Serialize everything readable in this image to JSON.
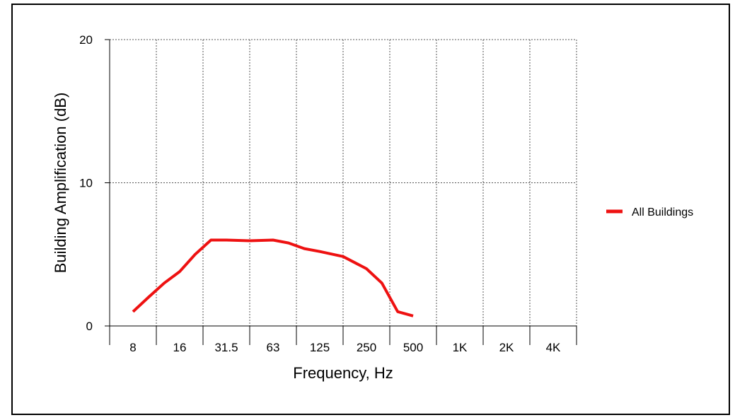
{
  "chart_data": {
    "type": "line",
    "title": "",
    "xlabel": "Frequency, Hz",
    "ylabel": "Building Amplification  (dB)",
    "x_categories": [
      "8",
      "16",
      "31.5",
      "63",
      "125",
      "250",
      "500",
      "1K",
      "2K",
      "4K"
    ],
    "ylim": [
      0,
      20
    ],
    "yticks": [
      "0",
      "10",
      "20"
    ],
    "grid": true,
    "legend_position": "right",
    "series": [
      {
        "name": "All Buildings",
        "color": "#ee1111",
        "x": [
          0,
          0.33,
          0.67,
          1.0,
          1.33,
          1.67,
          2.0,
          2.5,
          3.0,
          3.33,
          3.67,
          4.0,
          4.5,
          5.0,
          5.33,
          5.67,
          6.0
        ],
        "y": [
          1.0,
          2.0,
          3.0,
          3.8,
          5.0,
          6.0,
          6.0,
          5.95,
          6.0,
          5.8,
          5.4,
          5.2,
          4.85,
          4.0,
          3.0,
          1.0,
          0.7
        ]
      }
    ]
  }
}
